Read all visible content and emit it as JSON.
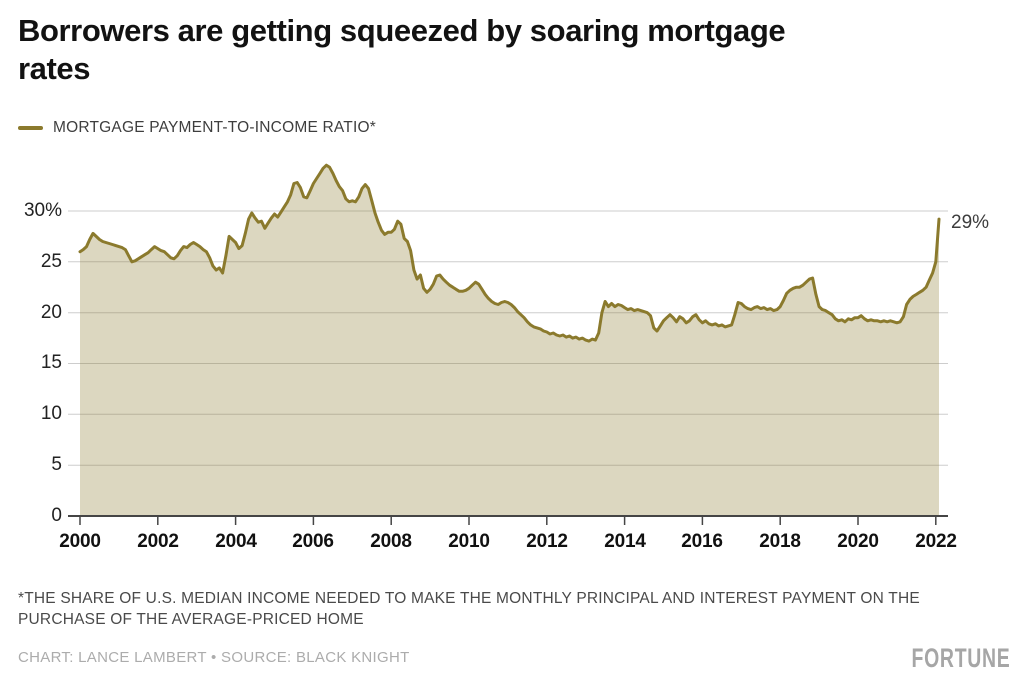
{
  "header": {
    "title": "Borrowers are getting squeezed by soaring mortgage\nrates"
  },
  "legend": {
    "label": "MORTGAGE PAYMENT-TO-INCOME RATIO*",
    "swatch_color": "#8b7a2d"
  },
  "chart_data": {
    "type": "area",
    "series_name": "MORTGAGE PAYMENT-TO-INCOME RATIO*",
    "unit": "%",
    "frequency": "monthly",
    "x_start_year": 2000,
    "x_start_month": 1,
    "x_end_year": 2022,
    "x_end_month": 2,
    "x_tick_years": [
      2000,
      2002,
      2004,
      2006,
      2008,
      2010,
      2012,
      2014,
      2016,
      2018,
      2020,
      2022
    ],
    "y_ticks": [
      {
        "value": 30,
        "label": "30%"
      },
      {
        "value": 25,
        "label": "25"
      },
      {
        "value": 20,
        "label": "20"
      },
      {
        "value": 15,
        "label": "15"
      },
      {
        "value": 10,
        "label": "10"
      },
      {
        "value": 5,
        "label": "5"
      },
      {
        "value": 0,
        "label": "0"
      }
    ],
    "ylim": [
      0,
      35
    ],
    "grid": true,
    "legend_position": "top-left",
    "end_label": "29%",
    "line_color": "#8b7a2d",
    "fill_color": "rgba(139,122,45,0.30)",
    "grid_color": "#cdcdcd",
    "axis_color": "#454545",
    "values": [
      26.0,
      26.2,
      26.5,
      27.2,
      27.8,
      27.5,
      27.2,
      27.0,
      26.9,
      26.8,
      26.7,
      26.6,
      26.5,
      26.4,
      26.2,
      25.6,
      25.0,
      25.1,
      25.3,
      25.5,
      25.7,
      25.9,
      26.2,
      26.5,
      26.3,
      26.1,
      26.0,
      25.7,
      25.4,
      25.3,
      25.6,
      26.1,
      26.5,
      26.4,
      26.7,
      26.9,
      26.7,
      26.5,
      26.2,
      26.0,
      25.4,
      24.6,
      24.2,
      24.4,
      23.9,
      25.6,
      27.5,
      27.2,
      26.9,
      26.3,
      26.6,
      27.8,
      29.2,
      29.8,
      29.3,
      28.9,
      29.0,
      28.3,
      28.8,
      29.3,
      29.7,
      29.4,
      29.9,
      30.4,
      30.9,
      31.6,
      32.7,
      32.8,
      32.3,
      31.4,
      31.3,
      32.0,
      32.7,
      33.2,
      33.7,
      34.2,
      34.5,
      34.3,
      33.7,
      33.0,
      32.4,
      32.0,
      31.2,
      30.9,
      31.0,
      30.9,
      31.4,
      32.2,
      32.6,
      32.2,
      31.0,
      29.8,
      28.9,
      28.1,
      27.7,
      27.9,
      27.9,
      28.2,
      29.0,
      28.7,
      27.3,
      27.0,
      26.1,
      24.2,
      23.3,
      23.7,
      22.4,
      22.0,
      22.3,
      22.8,
      23.6,
      23.7,
      23.3,
      23.0,
      22.7,
      22.5,
      22.3,
      22.1,
      22.1,
      22.2,
      22.4,
      22.7,
      23.0,
      22.8,
      22.3,
      21.8,
      21.4,
      21.1,
      20.9,
      20.8,
      21.0,
      21.1,
      21.0,
      20.8,
      20.5,
      20.1,
      19.8,
      19.5,
      19.1,
      18.8,
      18.6,
      18.5,
      18.4,
      18.2,
      18.1,
      17.9,
      18.0,
      17.8,
      17.7,
      17.8,
      17.6,
      17.7,
      17.5,
      17.6,
      17.4,
      17.5,
      17.3,
      17.2,
      17.4,
      17.3,
      18.0,
      20.0,
      21.1,
      20.6,
      20.9,
      20.6,
      20.8,
      20.7,
      20.5,
      20.3,
      20.4,
      20.2,
      20.3,
      20.2,
      20.1,
      20.0,
      19.7,
      18.5,
      18.2,
      18.7,
      19.2,
      19.5,
      19.8,
      19.5,
      19.1,
      19.6,
      19.4,
      19.0,
      19.2,
      19.6,
      19.8,
      19.3,
      19.0,
      19.2,
      18.9,
      18.8,
      18.9,
      18.7,
      18.8,
      18.6,
      18.7,
      18.8,
      19.8,
      21.0,
      20.9,
      20.6,
      20.4,
      20.3,
      20.5,
      20.6,
      20.4,
      20.5,
      20.3,
      20.4,
      20.2,
      20.3,
      20.6,
      21.2,
      21.9,
      22.2,
      22.4,
      22.5,
      22.5,
      22.7,
      23.0,
      23.3,
      23.4,
      21.8,
      20.6,
      20.3,
      20.2,
      20.0,
      19.8,
      19.4,
      19.2,
      19.3,
      19.1,
      19.4,
      19.3,
      19.5,
      19.5,
      19.7,
      19.4,
      19.2,
      19.3,
      19.2,
      19.2,
      19.1,
      19.2,
      19.1,
      19.2,
      19.1,
      19.0,
      19.1,
      19.6,
      20.8,
      21.3,
      21.6,
      21.8,
      22.0,
      22.2,
      22.5,
      23.2,
      23.9,
      25.0,
      29.2
    ]
  },
  "footer": {
    "note": "*THE SHARE OF U.S. MEDIAN INCOME NEEDED TO MAKE THE MONTHLY PRINCIPAL AND INTEREST PAYMENT ON THE\nPURCHASE OF THE AVERAGE-PRICED HOME",
    "credit": "CHART: LANCE LAMBERT • SOURCE: BLACK KNIGHT",
    "brand": "FORTUNE"
  }
}
